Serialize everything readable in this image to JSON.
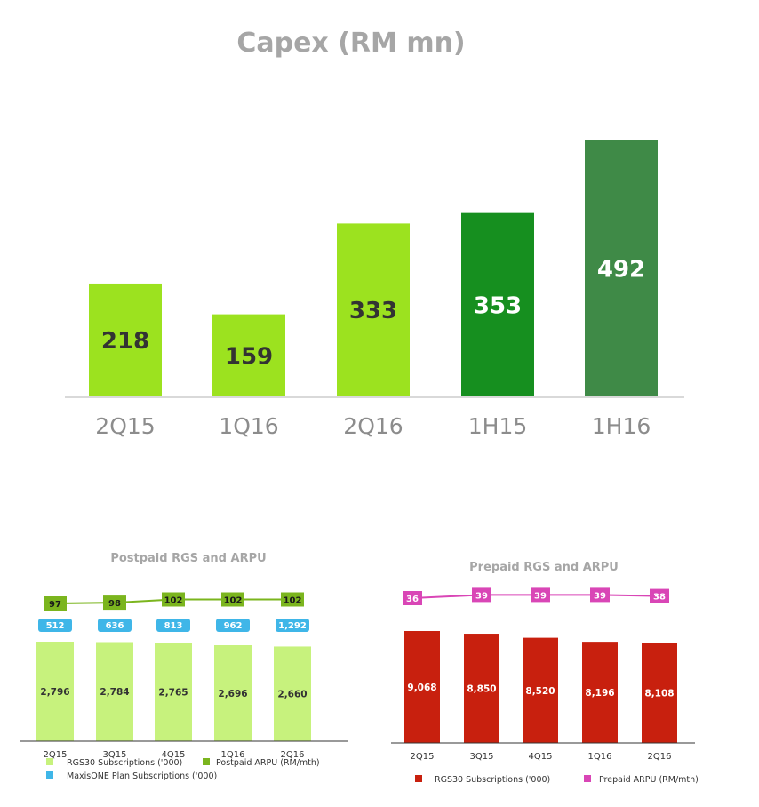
{
  "chart_data": [
    {
      "id": "capex",
      "type": "bar",
      "title": "Capex (RM mn)",
      "categories": [
        "2Q15",
        "1Q16",
        "2Q16",
        "1H15",
        "1H16"
      ],
      "values": [
        218,
        159,
        333,
        353,
        492
      ],
      "ylim": [
        0,
        500
      ],
      "colors": [
        "#9ce21f",
        "#9ce21f",
        "#9ce21f",
        "#168f1f",
        "#3f8a47"
      ],
      "label_colors": [
        "#333333",
        "#333333",
        "#333333",
        "#ffffff",
        "#ffffff"
      ],
      "grid": false,
      "legend": "none"
    },
    {
      "id": "postpaid",
      "type": "bar+line",
      "title": "Postpaid RGS and ARPU",
      "categories": [
        "2Q15",
        "3Q15",
        "4Q15",
        "1Q16",
        "2Q16"
      ],
      "series": [
        {
          "name": "RGS30 Subscriptions ('000)",
          "type": "bar",
          "values": [
            2796,
            2784,
            2765,
            2696,
            2660
          ],
          "labels": [
            "2,796",
            "2,784",
            "2,765",
            "2,696",
            "2,660"
          ],
          "color": "#c7f27d"
        },
        {
          "name": "MaxisONE Plan Subscriptions ('000)",
          "type": "badge",
          "values": [
            512,
            636,
            813,
            962,
            1292
          ],
          "labels": [
            "512",
            "636",
            "813",
            "962",
            "1,292"
          ],
          "color": "#3fb6e8"
        },
        {
          "name": "Postpaid ARPU (RM/mth)",
          "type": "line",
          "values": [
            97,
            98,
            102,
            102,
            102
          ],
          "labels": [
            "97",
            "98",
            "102",
            "102",
            "102"
          ],
          "color": "#7bb51e"
        }
      ],
      "ylim": [
        0,
        3000
      ],
      "legend": "bottom"
    },
    {
      "id": "prepaid",
      "type": "bar+line",
      "title": "Prepaid RGS and ARPU",
      "categories": [
        "2Q15",
        "3Q15",
        "4Q15",
        "1Q16",
        "2Q16"
      ],
      "series": [
        {
          "name": "RGS30 Subscriptions ('000)",
          "type": "bar",
          "values": [
            9068,
            8850,
            8520,
            8196,
            8108
          ],
          "labels": [
            "9,068",
            "8,850",
            "8,520",
            "8,196",
            "8,108"
          ],
          "color": "#c8200e"
        },
        {
          "name": "Prepaid ARPU (RM/mth)",
          "type": "line",
          "values": [
            36,
            39,
            39,
            39,
            38
          ],
          "labels": [
            "36",
            "39",
            "39",
            "39",
            "38"
          ],
          "color": "#d946b6"
        }
      ],
      "ylim": [
        0,
        10000
      ],
      "legend": "bottom"
    }
  ]
}
